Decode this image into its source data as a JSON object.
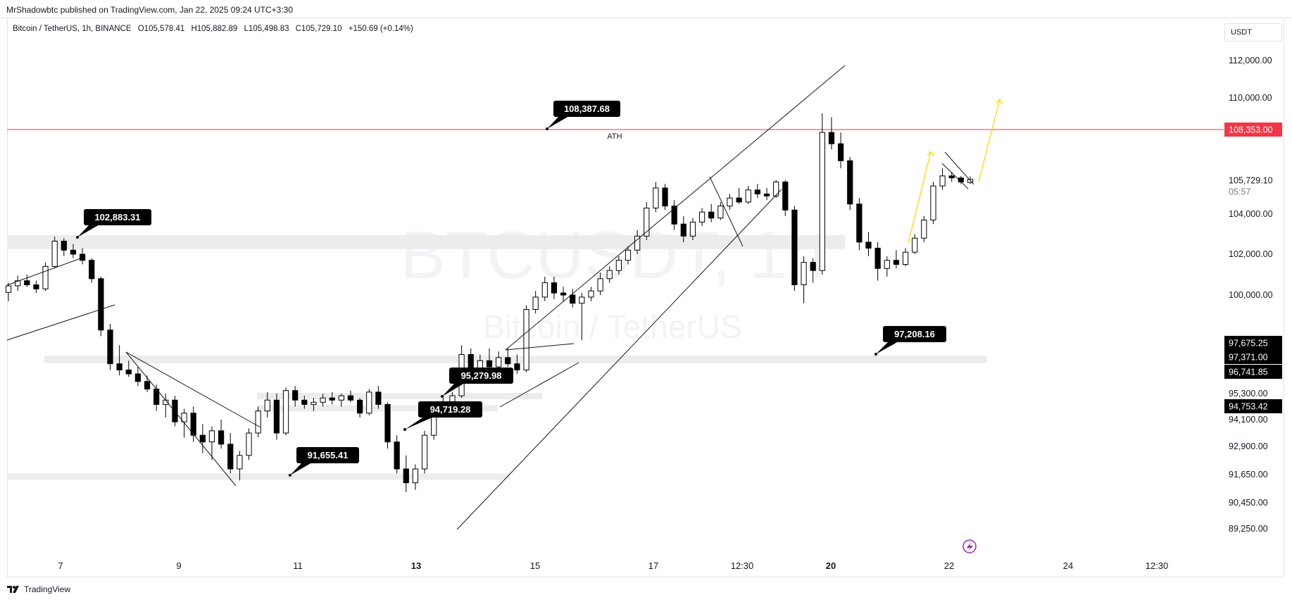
{
  "header": {
    "publisher": "MrShadowbtc published on TradingView.com, Jan 22, 2025 09:24 UTC+3:30",
    "symbol_name": "Bitcoin / TetherUS, 1h, BINANCE",
    "open": "O105,578.41",
    "high": "H105,882.89",
    "low": "L105,498.83",
    "close": "C105,729.10",
    "change": "+150.69 (+0.14%)",
    "currency": "USDT"
  },
  "watermark": {
    "line1": "BTCUSDT, 1h",
    "line2": "Bitcoin / TetherUS"
  },
  "footer": {
    "brand": "TradingView"
  },
  "colors": {
    "up": "#ffffff",
    "down": "#000000",
    "wick": "#000000",
    "ath_line": "#f23645",
    "projection": "#ffd700",
    "zone": "#ececec",
    "lightning": "#9c27b0"
  },
  "chart_data": {
    "type": "candlestick",
    "title": "Bitcoin / TetherUS, 1h, BINANCE",
    "timeframe": "1h",
    "y_axis": {
      "ticks": [
        "112,000.00",
        "110,000.00",
        "104,000.00",
        "102,000.00",
        "100,000.00",
        "95,300.00",
        "94,100.00",
        "92,900.00",
        "91,650.00",
        "90,450.00",
        "89,250.00"
      ]
    },
    "x_axis": {
      "ticks": [
        "7",
        "9",
        "11",
        "13",
        "15",
        "17",
        "12:30",
        "20",
        "22",
        "24",
        "12:30"
      ],
      "bold": [
        "13",
        "20"
      ]
    },
    "price_labels": [
      {
        "value": "108,353.00",
        "style": "red"
      },
      {
        "value": "105,729.10",
        "style": "current"
      },
      {
        "value": "05:57",
        "style": "countdown"
      },
      {
        "value": "97,675.25",
        "style": "dark"
      },
      {
        "value": "97,371.00",
        "style": "dark"
      },
      {
        "value": "96,741.85",
        "style": "dark"
      },
      {
        "value": "94,753.42",
        "style": "dark"
      }
    ],
    "callouts": [
      "108,387.68",
      "102,883.31",
      "95,279.98",
      "94,719.28",
      "91,655.41",
      "97,208.16"
    ],
    "annotations": [
      "ATH"
    ],
    "ath_level": 108353.0,
    "key_levels": [
      102883.31,
      97208.16,
      95279.98,
      94719.28,
      91655.41
    ],
    "candles": [
      [
        100130,
        100600,
        99700,
        100450
      ],
      [
        100450,
        100950,
        100200,
        100700
      ],
      [
        100700,
        101000,
        100400,
        100500
      ],
      [
        100500,
        100700,
        100100,
        100300
      ],
      [
        100300,
        101600,
        100200,
        101400
      ],
      [
        101400,
        102883,
        101300,
        102650
      ],
      [
        102650,
        102800,
        101900,
        102200
      ],
      [
        102200,
        102500,
        101800,
        102000
      ],
      [
        102000,
        102300,
        101500,
        101700
      ],
      [
        101700,
        101800,
        100600,
        100800
      ],
      [
        100800,
        100900,
        98000,
        98300
      ],
      [
        98300,
        98600,
        96800,
        97000
      ],
      [
        97000,
        97600,
        96500,
        96800
      ],
      [
        96800,
        97100,
        96400,
        96600
      ],
      [
        96600,
        96900,
        95800,
        96100
      ],
      [
        96100,
        96500,
        95400,
        95600
      ],
      [
        95600,
        95900,
        94500,
        94800
      ],
      [
        94800,
        95300,
        94200,
        95000
      ],
      [
        95000,
        95200,
        93800,
        94000
      ],
      [
        94000,
        94600,
        93300,
        94400
      ],
      [
        94400,
        94700,
        93100,
        93400
      ],
      [
        93400,
        93900,
        92600,
        93100
      ],
      [
        93100,
        93800,
        92300,
        93600
      ],
      [
        93600,
        94100,
        92800,
        93000
      ],
      [
        93000,
        93500,
        91700,
        91900
      ],
      [
        91900,
        92700,
        91400,
        92500
      ],
      [
        92500,
        93700,
        92300,
        93500
      ],
      [
        93500,
        94700,
        93300,
        94500
      ],
      [
        94500,
        95400,
        94200,
        95000
      ],
      [
        95000,
        95300,
        93200,
        93500
      ],
      [
        93500,
        95700,
        93400,
        95500
      ],
      [
        95500,
        95800,
        94700,
        95000
      ],
      [
        95000,
        95200,
        94600,
        94800
      ],
      [
        94800,
        95100,
        94500,
        94900
      ],
      [
        94900,
        95300,
        94700,
        95100
      ],
      [
        95100,
        95400,
        94800,
        95000
      ],
      [
        95000,
        95300,
        94700,
        95200
      ],
      [
        95200,
        95500,
        94900,
        95000
      ],
      [
        95000,
        95100,
        94200,
        94400
      ],
      [
        94400,
        95600,
        94300,
        95400
      ],
      [
        95400,
        95800,
        94600,
        94800
      ],
      [
        94800,
        94900,
        92800,
        93100
      ],
      [
        93100,
        93400,
        91700,
        91900
      ],
      [
        91900,
        92500,
        90900,
        91300
      ],
      [
        91300,
        92100,
        91000,
        91900
      ],
      [
        91900,
        93600,
        91700,
        93400
      ],
      [
        93400,
        94600,
        93200,
        94400
      ],
      [
        94400,
        95100,
        94300,
        94800
      ],
      [
        94800,
        95400,
        94700,
        95200
      ],
      [
        95200,
        97600,
        95100,
        97300
      ],
      [
        97300,
        97500,
        96400,
        96600
      ],
      [
        96600,
        97300,
        96400,
        97100
      ],
      [
        97100,
        97500,
        96700,
        96900
      ],
      [
        96900,
        97400,
        96800,
        97200
      ],
      [
        97200,
        97500,
        96900,
        97000
      ],
      [
        97000,
        97300,
        96600,
        96800
      ],
      [
        96800,
        99500,
        96700,
        99300
      ],
      [
        99300,
        100200,
        99100,
        99900
      ],
      [
        99900,
        100900,
        99700,
        100600
      ],
      [
        100600,
        100900,
        99800,
        100100
      ],
      [
        100100,
        100400,
        99700,
        100000
      ],
      [
        100000,
        100300,
        99400,
        99600
      ],
      [
        99600,
        100100,
        97800,
        99900
      ],
      [
        99900,
        100400,
        99700,
        100200
      ],
      [
        100200,
        101100,
        100000,
        100800
      ],
      [
        100800,
        101400,
        100600,
        101200
      ],
      [
        101200,
        101900,
        101000,
        101700
      ],
      [
        101700,
        102400,
        101500,
        102200
      ],
      [
        102200,
        103200,
        102000,
        102900
      ],
      [
        102900,
        104600,
        102700,
        104300
      ],
      [
        104300,
        105600,
        104100,
        105300
      ],
      [
        105300,
        105500,
        104200,
        104400
      ],
      [
        104400,
        104700,
        103200,
        103500
      ],
      [
        103500,
        103900,
        102600,
        102900
      ],
      [
        102900,
        103800,
        102700,
        103600
      ],
      [
        103600,
        104300,
        103400,
        104100
      ],
      [
        104100,
        104500,
        103600,
        103800
      ],
      [
        103800,
        104600,
        103700,
        104400
      ],
      [
        104400,
        105000,
        104200,
        104800
      ],
      [
        104800,
        105300,
        104500,
        104600
      ],
      [
        104600,
        105400,
        104500,
        105200
      ],
      [
        105200,
        105500,
        104800,
        105000
      ],
      [
        105000,
        105300,
        104700,
        104900
      ],
      [
        104900,
        105700,
        104800,
        105600
      ],
      [
        105600,
        105700,
        103900,
        104200
      ],
      [
        104200,
        104400,
        100200,
        100500
      ],
      [
        100500,
        101900,
        99600,
        101600
      ],
      [
        101600,
        101800,
        100600,
        101200
      ],
      [
        101200,
        109200,
        101000,
        108200
      ],
      [
        108200,
        109000,
        107300,
        107600
      ],
      [
        107600,
        108200,
        106300,
        106700
      ],
      [
        106700,
        106900,
        104200,
        104500
      ],
      [
        104500,
        104800,
        102200,
        102600
      ],
      [
        102600,
        103100,
        101900,
        102300
      ],
      [
        102300,
        102600,
        100700,
        101300
      ],
      [
        101300,
        101900,
        100900,
        101700
      ],
      [
        101700,
        102200,
        101300,
        101500
      ],
      [
        101500,
        102300,
        101400,
        102100
      ],
      [
        102100,
        103000,
        102000,
        102800
      ],
      [
        102800,
        103900,
        102600,
        103700
      ],
      [
        103700,
        105600,
        103500,
        105400
      ],
      [
        105400,
        106300,
        105200,
        105900
      ],
      [
        105900,
        106100,
        105600,
        105800
      ],
      [
        105800,
        105900,
        105500,
        105600
      ],
      [
        105578.41,
        105882.89,
        105498.83,
        105729.1
      ]
    ]
  }
}
